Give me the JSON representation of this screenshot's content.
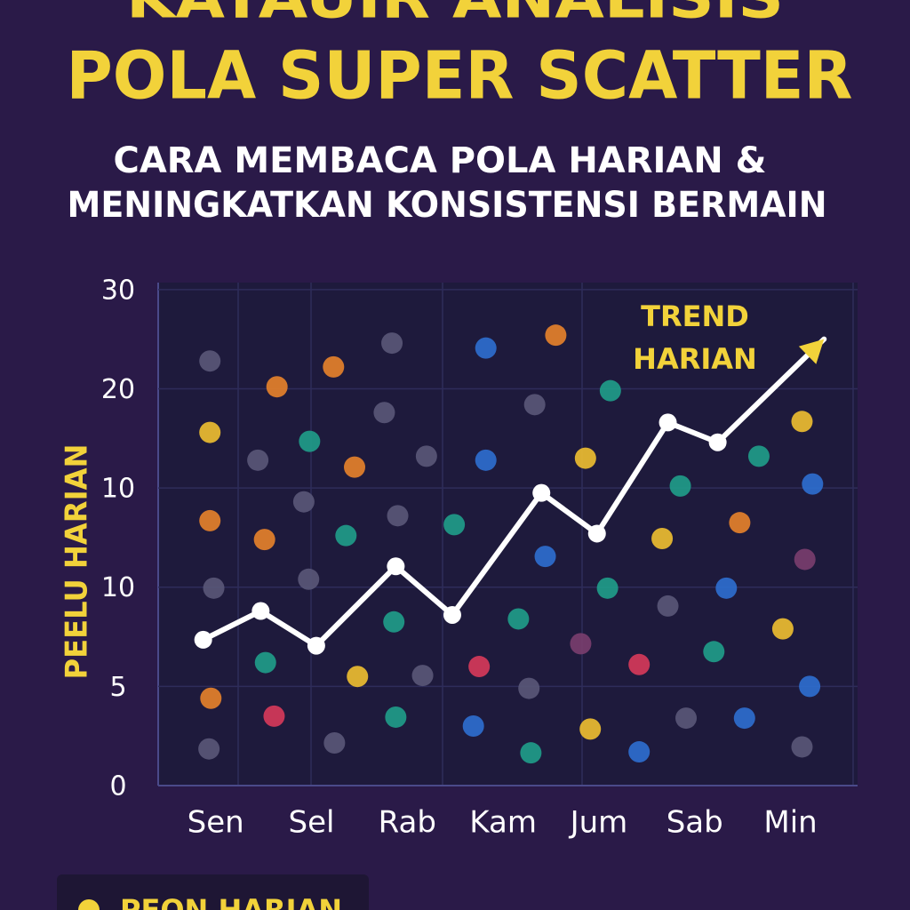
{
  "chart_data": {
    "type": "scatter",
    "supertitle": "KATAUIR ANALISIS",
    "title": "POLA SUPER SCATTER",
    "subtitle": [
      "CARA MEMBACA POLA HARIAN &",
      "MENINGKATKAN KONSISTENSI BERMAIN"
    ],
    "ylabel": "PEELU HARIAN",
    "annotation": "TREND HARIAN",
    "xlim": [
      -0.6,
      6.7
    ],
    "xticks": [
      {
        "value": 0,
        "label": "Sen"
      },
      {
        "value": 1,
        "label": "Sel"
      },
      {
        "value": 2,
        "label": "Rab"
      },
      {
        "value": 3,
        "label": "Kam"
      },
      {
        "value": 4,
        "label": "Jum"
      },
      {
        "value": 5,
        "label": "Sab"
      },
      {
        "value": 6,
        "label": "Min"
      }
    ],
    "ylim": [
      0,
      5.07
    ],
    "yticks": [
      0,
      {
        "value": 1,
        "label": "5"
      },
      {
        "value": 2,
        "label": "10"
      },
      {
        "value": 3,
        "label": "10"
      },
      {
        "value": 4,
        "label": "20"
      },
      {
        "value": 5,
        "label": "30"
      }
    ],
    "grid": true,
    "series": [
      {
        "color": "#5a5878",
        "x": [
          -0.06,
          0.44,
          0.92,
          -0.02,
          0.97,
          -0.07,
          1.24,
          1.84,
          1.76,
          2.2,
          1.9,
          2.16,
          3.27,
          3.33,
          4.72,
          4.91,
          6.12
        ],
        "values": [
          4.28,
          3.28,
          2.86,
          1.99,
          2.08,
          0.37,
          0.43,
          4.46,
          3.76,
          3.32,
          2.72,
          1.11,
          0.98,
          3.84,
          1.81,
          0.68,
          0.39
        ]
      },
      {
        "color": "#e8832a",
        "x": [
          -0.06,
          0.51,
          1.45,
          0.64,
          1.23,
          3.55,
          5.47,
          -0.05
        ],
        "values": [
          2.67,
          2.48,
          3.21,
          4.02,
          4.22,
          4.54,
          2.65,
          0.88
        ]
      },
      {
        "color": "#f0c030",
        "x": [
          -0.06,
          1.48,
          3.86,
          4.66,
          3.91,
          6.12,
          5.92
        ],
        "values": [
          3.56,
          1.1,
          3.3,
          2.49,
          0.57,
          3.67,
          1.58
        ]
      },
      {
        "color": "#1f9e8a",
        "x": [
          0.98,
          1.36,
          0.52,
          1.86,
          1.88,
          2.49,
          3.16,
          3.29,
          4.12,
          4.85,
          4.09,
          5.2,
          5.67
        ],
        "values": [
          3.47,
          2.52,
          1.24,
          1.65,
          0.69,
          2.63,
          1.68,
          0.33,
          3.98,
          3.02,
          1.99,
          1.35,
          3.32
        ]
      },
      {
        "color": "#2d6fd0",
        "x": [
          2.82,
          2.82,
          3.44,
          2.69,
          4.42,
          5.33,
          5.52,
          6.23,
          6.2
        ],
        "values": [
          4.41,
          3.28,
          2.31,
          0.6,
          0.34,
          1.99,
          0.68,
          3.04,
          1.0
        ]
      },
      {
        "color": "#d83a5a",
        "x": [
          0.61,
          2.75,
          4.42
        ],
        "values": [
          0.7,
          1.2,
          1.22
        ]
      },
      {
        "color": "#7a3e6e",
        "x": [
          3.81,
          6.15
        ],
        "values": [
          1.43,
          2.28
        ]
      }
    ],
    "trend": {
      "color": "#ffffff",
      "x": [
        -0.13,
        0.47,
        1.05,
        1.88,
        2.47,
        3.4,
        3.98,
        4.72,
        5.24,
        6.35
      ],
      "values": [
        1.47,
        1.76,
        1.41,
        2.21,
        1.72,
        2.95,
        2.54,
        3.66,
        3.46,
        4.5
      ]
    }
  },
  "footer": {
    "label": "PEON HARIAN"
  }
}
